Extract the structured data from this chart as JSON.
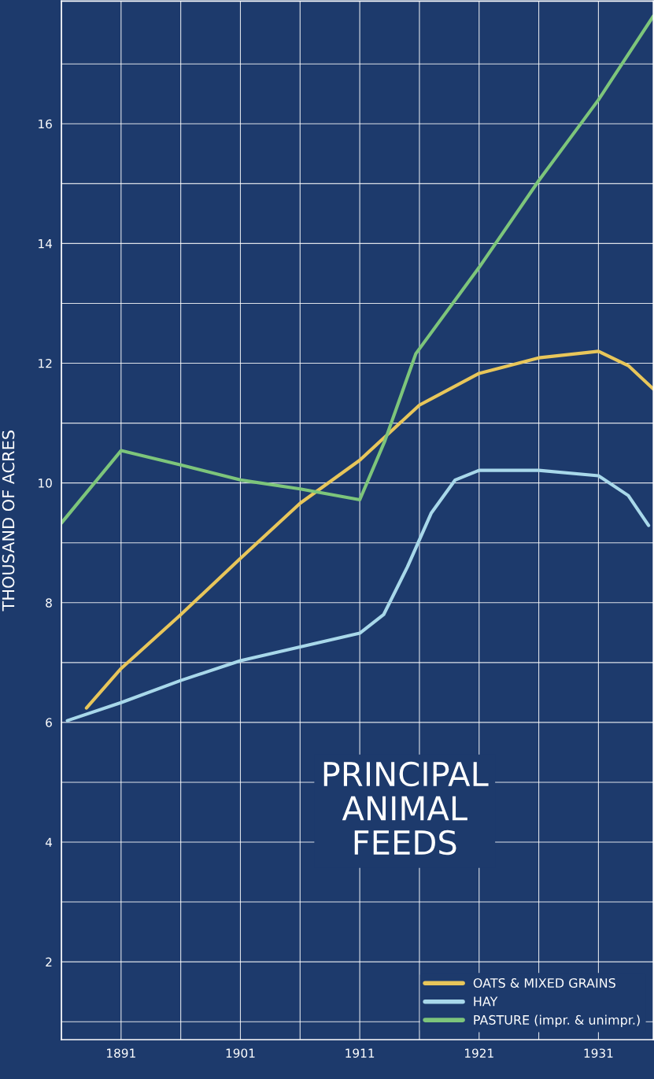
{
  "chart_data": {
    "type": "line",
    "title": "PRINCIPAL ANIMAL FEEDS",
    "ylabel": "THOUSAND OF ACRES",
    "xlim": [
      1886,
      1935.6
    ],
    "ylim": [
      0.7,
      18.05
    ],
    "xticks": [
      {
        "value": 1886,
        "label": null
      },
      1891,
      {
        "value": 1896,
        "label": null
      },
      1901,
      {
        "value": 1906,
        "label": null
      },
      1911,
      {
        "value": 1916,
        "label": null
      },
      1921,
      {
        "value": 1926,
        "label": null
      },
      1931
    ],
    "yticks": [
      {
        "value": 1,
        "label": null
      },
      2,
      {
        "value": 3,
        "label": null
      },
      4,
      {
        "value": 5,
        "label": null
      },
      6,
      {
        "value": 7,
        "label": null
      },
      8,
      {
        "value": 9,
        "label": null
      },
      10,
      {
        "value": 11,
        "label": null
      },
      12,
      {
        "value": 13,
        "label": null
      },
      14,
      {
        "value": 15,
        "label": null
      },
      16,
      {
        "value": 17,
        "label": null
      }
    ],
    "grid": true,
    "legend": "bottom right",
    "series": [
      {
        "name": "OATS & MIXED GRAINS",
        "color": "#e8c65a",
        "x": [
          1888.1,
          1891,
          1896,
          1901,
          1906,
          1911,
          1916,
          1921,
          1926,
          1931,
          1933.5,
          1935.6
        ],
        "values": [
          6.24,
          6.9,
          7.8,
          8.74,
          9.66,
          10.38,
          11.3,
          11.83,
          12.09,
          12.2,
          11.96,
          11.57
        ]
      },
      {
        "name": "HAY",
        "color": "#a8d8ea",
        "x": [
          1886.5,
          1891,
          1896,
          1901,
          1906,
          1911,
          1913,
          1915,
          1917,
          1919,
          1921,
          1926,
          1931,
          1933.5,
          1935.2
        ],
        "values": [
          6.03,
          6.33,
          6.7,
          7.03,
          7.26,
          7.49,
          7.8,
          8.6,
          9.5,
          10.05,
          10.21,
          10.21,
          10.12,
          9.79,
          9.29
        ]
      },
      {
        "name": "PASTURE (impr. & unimpr.)",
        "color": "#7dc57b",
        "x": [
          1886,
          1891,
          1896,
          1901,
          1906,
          1911,
          1913.1,
          1915.7,
          1921,
          1926,
          1931,
          1935.6
        ],
        "values": [
          9.33,
          10.54,
          10.3,
          10.05,
          9.9,
          9.72,
          10.7,
          12.16,
          13.6,
          15.05,
          16.4,
          17.8
        ]
      }
    ]
  }
}
